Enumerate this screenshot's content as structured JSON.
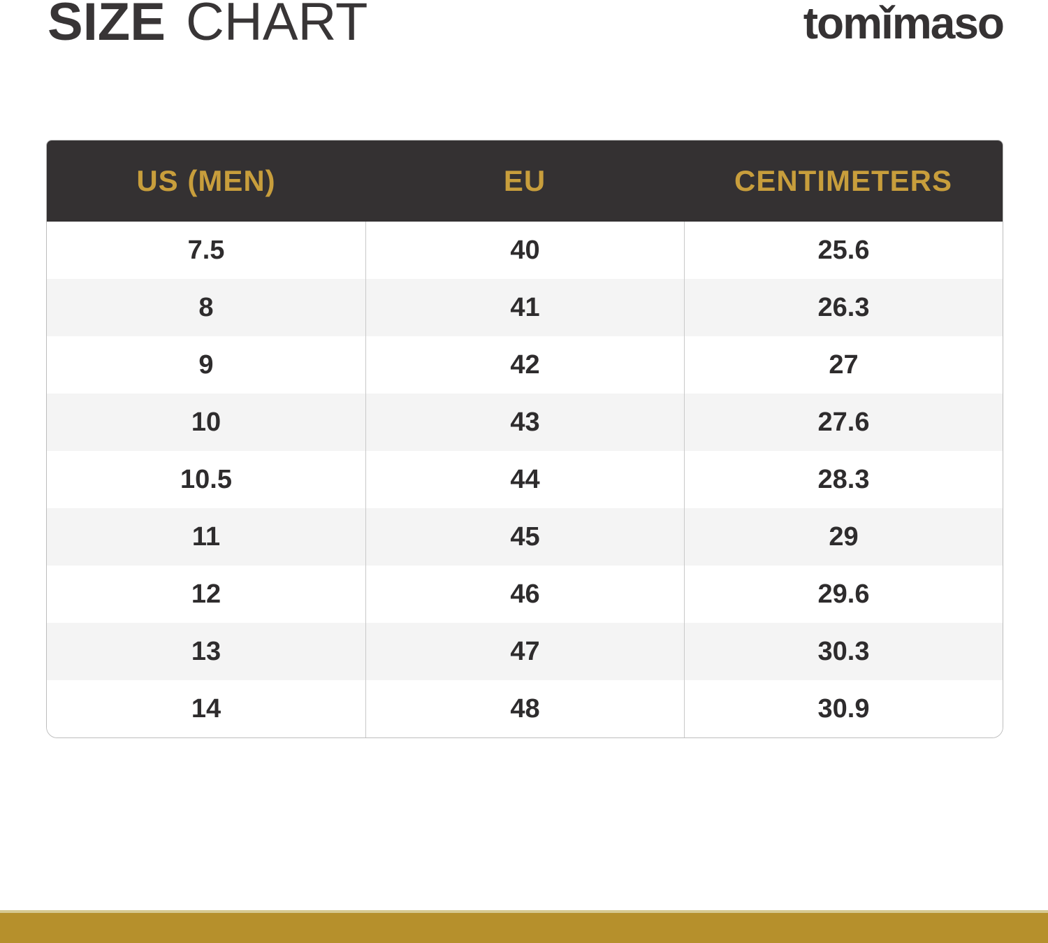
{
  "page": {
    "title_bold": "SIZE",
    "title_light": "CHART",
    "logo_text": "tomǐmaso"
  },
  "table": {
    "columns": [
      "US (MEN)",
      "EU",
      "CENTIMETERS"
    ],
    "rows": [
      {
        "us": "7.5",
        "eu": "40",
        "cm": "25.6"
      },
      {
        "us": "8",
        "eu": "41",
        "cm": "26.3"
      },
      {
        "us": "9",
        "eu": "42",
        "cm": "27"
      },
      {
        "us": "10",
        "eu": "43",
        "cm": "27.6"
      },
      {
        "us": "10.5",
        "eu": "44",
        "cm": "28.3"
      },
      {
        "us": "11",
        "eu": "45",
        "cm": "29"
      },
      {
        "us": "12",
        "eu": "46",
        "cm": "29.6"
      },
      {
        "us": "13",
        "eu": "47",
        "cm": "30.3"
      },
      {
        "us": "14",
        "eu": "48",
        "cm": "30.9"
      }
    ]
  },
  "colors": {
    "header_bg": "#343132",
    "header_text": "#c89e3c",
    "row_alt_bg": "#f4f4f4",
    "cell_text": "#2e2c2d",
    "title_text": "#383536",
    "footer_bar": "#b6902c",
    "footer_bar_top_edge": "#d6c991",
    "table_border": "#bdbdbd"
  },
  "chart_data": {
    "type": "table",
    "title": "SIZE CHART",
    "columns": [
      "US (MEN)",
      "EU",
      "CENTIMETERS"
    ],
    "rows": [
      [
        "7.5",
        "40",
        "25.6"
      ],
      [
        "8",
        "41",
        "26.3"
      ],
      [
        "9",
        "42",
        "27"
      ],
      [
        "10",
        "43",
        "27.6"
      ],
      [
        "10.5",
        "44",
        "28.3"
      ],
      [
        "11",
        "45",
        "29"
      ],
      [
        "12",
        "46",
        "29.6"
      ],
      [
        "13",
        "47",
        "30.3"
      ],
      [
        "14",
        "48",
        "30.9"
      ]
    ]
  }
}
